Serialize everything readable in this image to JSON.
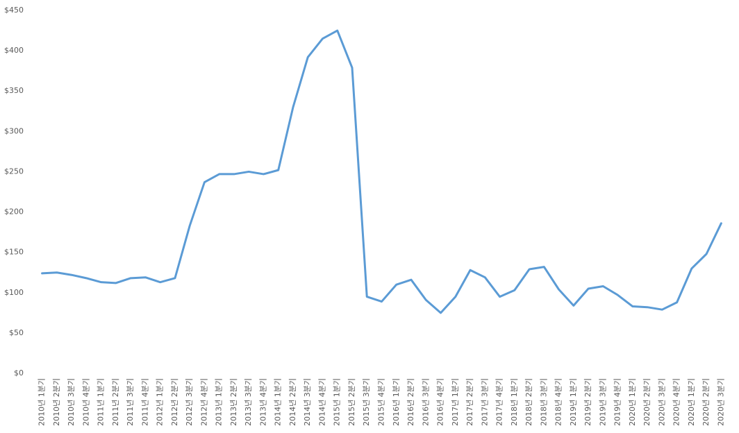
{
  "chart_data": {
    "type": "line",
    "categories": [
      "2010년 1분기",
      "2010년 2분기",
      "2010년 3분기",
      "2010년 4분기",
      "2011년 1분기",
      "2011년 2분기",
      "2011년 3분기",
      "2011년 4분기",
      "2012년 1분기",
      "2012년 2분기",
      "2012년 3분기",
      "2012년 4분기",
      "2013년 1분기",
      "2013년 2분기",
      "2013년 3분기",
      "2013년 4분기",
      "2014년 1분기",
      "2014년 2분기",
      "2014년 3분기",
      "2014년 4분기",
      "2015년 1분기",
      "2015년 2분기",
      "2015년 3분기",
      "2015년 4분기",
      "2016년 1분기",
      "2016년 2분기",
      "2016년 3분기",
      "2016년 4분기",
      "2017년 1분기",
      "2017년 2분기",
      "2017년 3분기",
      "2017년 4분기",
      "2018년 1분기",
      "2018년 2분기",
      "2018년 3분기",
      "2018년 4분기",
      "2019년 1분기",
      "2019년 2분기",
      "2019년 3분기",
      "2019년 4분기",
      "2020년 1분기",
      "2020년 2분기",
      "2020년 3분기",
      "2020년 4분기",
      "2020년 1분기",
      "2020년 2분기",
      "2020년 3분기"
    ],
    "values": [
      124,
      125,
      122,
      118,
      113,
      112,
      118,
      119,
      113,
      118,
      183,
      237,
      247,
      247,
      250,
      247,
      252,
      330,
      392,
      415,
      425,
      379,
      95,
      89,
      110,
      116,
      91,
      75,
      95,
      128,
      119,
      95,
      103,
      129,
      132,
      104,
      84,
      105,
      108,
      97,
      83,
      82,
      79,
      88,
      130,
      148,
      186
    ],
    "color": "#5b9bd5",
    "ylim": [
      0,
      450
    ],
    "yticks": [
      {
        "value": 0,
        "label": "$0"
      },
      {
        "value": 50,
        "label": "$50"
      },
      {
        "value": 100,
        "label": "$100"
      },
      {
        "value": 150,
        "label": "$150"
      },
      {
        "value": 200,
        "label": "$200"
      },
      {
        "value": 250,
        "label": "$250"
      },
      {
        "value": 300,
        "label": "$300"
      },
      {
        "value": 350,
        "label": "$350"
      },
      {
        "value": 400,
        "label": "$400"
      },
      {
        "value": 450,
        "label": "$450"
      }
    ],
    "grid": false
  }
}
